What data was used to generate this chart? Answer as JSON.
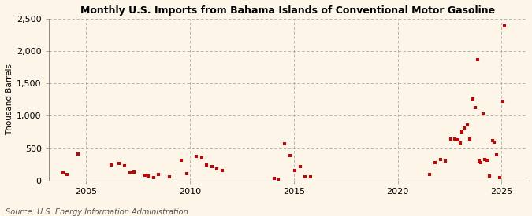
{
  "title": "Monthly U.S. Imports from Bahama Islands of Conventional Motor Gasoline",
  "ylabel": "Thousand Barrels",
  "source": "Source: U.S. Energy Information Administration",
  "background_color": "#fdf6e8",
  "marker_color": "#cc0000",
  "ylim": [
    0,
    2500
  ],
  "yticks": [
    0,
    500,
    1000,
    1500,
    2000,
    2500
  ],
  "xlim": [
    2003.2,
    2026.2
  ],
  "xticks": [
    2005,
    2010,
    2015,
    2020,
    2025
  ],
  "data_points": [
    [
      2003.9,
      120
    ],
    [
      2004.1,
      95
    ],
    [
      2004.6,
      410
    ],
    [
      2006.2,
      245
    ],
    [
      2006.6,
      265
    ],
    [
      2006.85,
      225
    ],
    [
      2007.1,
      115
    ],
    [
      2007.3,
      125
    ],
    [
      2007.85,
      80
    ],
    [
      2008.0,
      70
    ],
    [
      2008.25,
      50
    ],
    [
      2008.5,
      95
    ],
    [
      2009.0,
      55
    ],
    [
      2009.6,
      315
    ],
    [
      2009.85,
      105
    ],
    [
      2010.3,
      370
    ],
    [
      2010.55,
      355
    ],
    [
      2010.8,
      235
    ],
    [
      2011.05,
      210
    ],
    [
      2011.3,
      180
    ],
    [
      2011.55,
      155
    ],
    [
      2014.05,
      28
    ],
    [
      2014.25,
      22
    ],
    [
      2014.55,
      570
    ],
    [
      2014.8,
      385
    ],
    [
      2015.05,
      150
    ],
    [
      2015.3,
      210
    ],
    [
      2015.55,
      58
    ],
    [
      2015.8,
      52
    ],
    [
      2021.55,
      100
    ],
    [
      2021.8,
      275
    ],
    [
      2022.05,
      325
    ],
    [
      2022.3,
      305
    ],
    [
      2022.55,
      645
    ],
    [
      2022.75,
      635
    ],
    [
      2022.9,
      625
    ],
    [
      2023.0,
      585
    ],
    [
      2023.1,
      755
    ],
    [
      2023.2,
      810
    ],
    [
      2023.35,
      865
    ],
    [
      2023.45,
      635
    ],
    [
      2023.6,
      1255
    ],
    [
      2023.72,
      1125
    ],
    [
      2023.83,
      1865
    ],
    [
      2023.92,
      305
    ],
    [
      2024.0,
      275
    ],
    [
      2024.1,
      1030
    ],
    [
      2024.2,
      325
    ],
    [
      2024.3,
      308
    ],
    [
      2024.4,
      72
    ],
    [
      2024.55,
      618
    ],
    [
      2024.65,
      598
    ],
    [
      2024.75,
      402
    ],
    [
      2024.9,
      48
    ],
    [
      2025.05,
      1218
    ],
    [
      2025.15,
      2395
    ]
  ]
}
